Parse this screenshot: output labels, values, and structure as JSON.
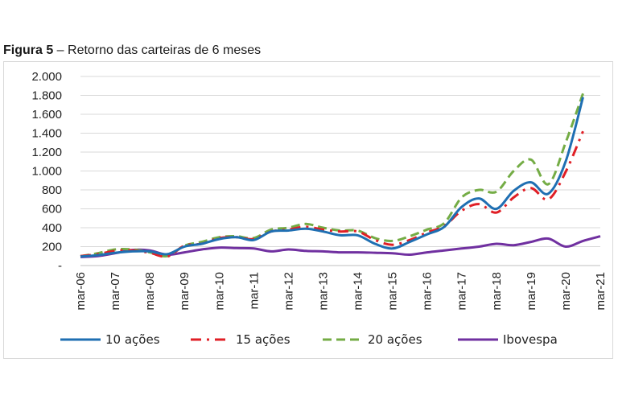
{
  "caption": {
    "label": "Figura 5",
    "separator": " – ",
    "text": "Retorno das carteiras de 6 meses"
  },
  "chart_data": {
    "type": "line",
    "xlabel": "",
    "ylabel": "",
    "ylim": [
      0,
      2000
    ],
    "y_ticks": [
      0,
      200,
      400,
      600,
      800,
      1000,
      1200,
      1400,
      1600,
      1800,
      2000
    ],
    "y_tick_labels": [
      "-",
      "200",
      "400",
      "600",
      "800",
      "1.000",
      "1.200",
      "1.400",
      "1.600",
      "1.800",
      "2.000"
    ],
    "x_ticks": [
      2006,
      2007,
      2008,
      2009,
      2010,
      2011,
      2012,
      2013,
      2014,
      2015,
      2016,
      2017,
      2018,
      2019,
      2020,
      2021
    ],
    "x_tick_labels": [
      "mar-06",
      "mar-07",
      "mar-08",
      "mar-09",
      "mar-10",
      "mar-11",
      "mar-12",
      "mar-13",
      "mar-14",
      "mar-15",
      "mar-16",
      "mar-17",
      "mar-18",
      "mar-19",
      "mar-20",
      "mar-21"
    ],
    "grid": "horizontal",
    "legend_position": "bottom",
    "series": [
      {
        "name": "10 ações",
        "color": "#1f6fb2",
        "dash": "solid",
        "points": [
          [
            2006,
            95
          ],
          [
            2006.5,
            110
          ],
          [
            2007,
            135
          ],
          [
            2007.5,
            150
          ],
          [
            2008,
            150
          ],
          [
            2008.5,
            120
          ],
          [
            2009,
            200
          ],
          [
            2009.5,
            230
          ],
          [
            2010,
            280
          ],
          [
            2010.5,
            300
          ],
          [
            2011,
            270
          ],
          [
            2011.5,
            360
          ],
          [
            2012,
            370
          ],
          [
            2012.5,
            390
          ],
          [
            2013,
            360
          ],
          [
            2013.5,
            320
          ],
          [
            2014,
            320
          ],
          [
            2014.5,
            230
          ],
          [
            2015,
            180
          ],
          [
            2015.5,
            250
          ],
          [
            2016,
            330
          ],
          [
            2016.5,
            410
          ],
          [
            2017,
            620
          ],
          [
            2017.5,
            710
          ],
          [
            2018,
            600
          ],
          [
            2018.5,
            790
          ],
          [
            2019,
            880
          ],
          [
            2019.5,
            760
          ],
          [
            2020,
            1100
          ],
          [
            2020.5,
            1780
          ]
        ]
      },
      {
        "name": "15 ações",
        "color": "#e01f26",
        "dash": "dashdot",
        "points": [
          [
            2006,
            100
          ],
          [
            2006.5,
            120
          ],
          [
            2007,
            155
          ],
          [
            2007.5,
            160
          ],
          [
            2008,
            135
          ],
          [
            2008.5,
            95
          ],
          [
            2009,
            210
          ],
          [
            2009.5,
            230
          ],
          [
            2010,
            290
          ],
          [
            2010.5,
            300
          ],
          [
            2011,
            280
          ],
          [
            2011.5,
            360
          ],
          [
            2012,
            380
          ],
          [
            2012.5,
            410
          ],
          [
            2013,
            380
          ],
          [
            2013.5,
            360
          ],
          [
            2014,
            360
          ],
          [
            2014.5,
            270
          ],
          [
            2015,
            220
          ],
          [
            2015.5,
            270
          ],
          [
            2016,
            350
          ],
          [
            2016.5,
            420
          ],
          [
            2017,
            580
          ],
          [
            2017.5,
            650
          ],
          [
            2018,
            560
          ],
          [
            2018.5,
            720
          ],
          [
            2019,
            820
          ],
          [
            2019.5,
            700
          ],
          [
            2020,
            990
          ],
          [
            2020.5,
            1420
          ]
        ]
      },
      {
        "name": "20 ações",
        "color": "#74ac45",
        "dash": "dashed",
        "points": [
          [
            2006,
            100
          ],
          [
            2006.5,
            130
          ],
          [
            2007,
            170
          ],
          [
            2007.5,
            170
          ],
          [
            2008,
            140
          ],
          [
            2008.5,
            100
          ],
          [
            2009,
            210
          ],
          [
            2009.5,
            250
          ],
          [
            2010,
            300
          ],
          [
            2010.5,
            310
          ],
          [
            2011,
            290
          ],
          [
            2011.5,
            380
          ],
          [
            2012,
            400
          ],
          [
            2012.5,
            440
          ],
          [
            2013,
            400
          ],
          [
            2013.5,
            370
          ],
          [
            2014,
            370
          ],
          [
            2014.5,
            290
          ],
          [
            2015,
            260
          ],
          [
            2015.5,
            310
          ],
          [
            2016,
            380
          ],
          [
            2016.5,
            450
          ],
          [
            2017,
            720
          ],
          [
            2017.5,
            800
          ],
          [
            2018,
            780
          ],
          [
            2018.5,
            1000
          ],
          [
            2019,
            1120
          ],
          [
            2019.5,
            860
          ],
          [
            2020,
            1300
          ],
          [
            2020.5,
            1820
          ]
        ]
      },
      {
        "name": "Ibovespa",
        "color": "#7030a0",
        "dash": "solid",
        "points": [
          [
            2006,
            90
          ],
          [
            2006.5,
            100
          ],
          [
            2007,
            130
          ],
          [
            2007.5,
            165
          ],
          [
            2008,
            160
          ],
          [
            2008.5,
            115
          ],
          [
            2009,
            140
          ],
          [
            2009.5,
            170
          ],
          [
            2010,
            190
          ],
          [
            2010.5,
            185
          ],
          [
            2011,
            180
          ],
          [
            2011.5,
            150
          ],
          [
            2012,
            170
          ],
          [
            2012.5,
            155
          ],
          [
            2013,
            150
          ],
          [
            2013.5,
            140
          ],
          [
            2014,
            140
          ],
          [
            2014.5,
            135
          ],
          [
            2015,
            130
          ],
          [
            2015.5,
            115
          ],
          [
            2016,
            140
          ],
          [
            2016.5,
            160
          ],
          [
            2017,
            180
          ],
          [
            2017.5,
            200
          ],
          [
            2018,
            230
          ],
          [
            2018.5,
            215
          ],
          [
            2019,
            250
          ],
          [
            2019.5,
            285
          ],
          [
            2020,
            200
          ],
          [
            2020.5,
            260
          ],
          [
            2021,
            310
          ]
        ]
      }
    ]
  }
}
